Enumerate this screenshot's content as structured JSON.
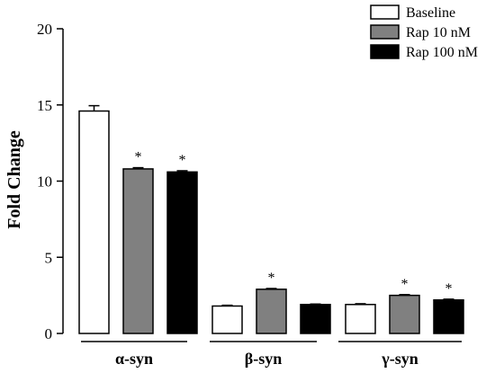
{
  "chart_data": {
    "type": "bar",
    "ylabel": "Fold Change",
    "ylim": [
      0,
      20
    ],
    "yticks": [
      0,
      5,
      10,
      15,
      20
    ],
    "categories": [
      "α-syn",
      "β-syn",
      "γ-syn"
    ],
    "series": [
      {
        "name": "Baseline",
        "color": "#ffffff",
        "values": [
          14.6,
          1.8,
          1.9
        ],
        "errors": [
          0.35,
          0.05,
          0.05
        ],
        "stars": [
          "",
          "",
          ""
        ]
      },
      {
        "name": "Rap 10 nM",
        "color": "#808080",
        "values": [
          10.8,
          2.9,
          2.5
        ],
        "errors": [
          0.08,
          0.05,
          0.05
        ],
        "stars": [
          "*",
          "*",
          "*"
        ]
      },
      {
        "name": "Rap 100 nM",
        "color": "#000000",
        "values": [
          10.6,
          1.9,
          2.2
        ],
        "errors": [
          0.08,
          0.03,
          0.05
        ],
        "stars": [
          "*",
          "",
          "*"
        ]
      }
    ],
    "legend_position": "top-right",
    "grid": false
  }
}
